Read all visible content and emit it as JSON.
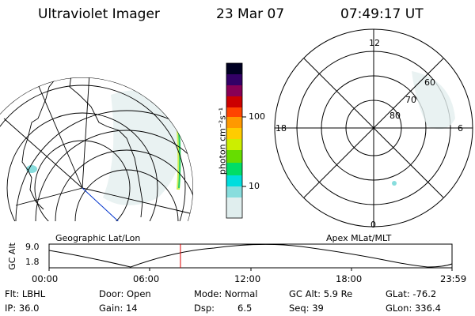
{
  "header": {
    "instrument": "Ultraviolet Imager",
    "date": "23 Mar 07",
    "time": "07:49:17 UT"
  },
  "colorbar": {
    "unit_label": "photon cm⁻²s⁻¹",
    "ticks": [
      "100",
      "10"
    ],
    "scale": "log",
    "colors": [
      "#000033",
      "#330066",
      "#660066",
      "#990033",
      "#cc0000",
      "#ff3300",
      "#ff9900",
      "#ffcc00",
      "#ccee00",
      "#66dd00",
      "#00dd66",
      "#00dddd",
      "#88dddd",
      "#e0eeee"
    ]
  },
  "left_panel": {
    "caption": "Geographic Lat/Lon"
  },
  "right_panel": {
    "caption": "Apex MLat/MLT",
    "mlt_labels": {
      "top": "12",
      "left": "18",
      "right": "6",
      "bottom": "0"
    },
    "lat_labels": [
      "60",
      "70",
      "80"
    ]
  },
  "altitude_strip": {
    "axis_label": "GC Alt",
    "y_top": "9.0",
    "y_bottom": "1.8",
    "time_ticks": [
      "00:00",
      "06:00",
      "12:00",
      "18:00",
      "23:59"
    ],
    "current_time_fraction": 0.326
  },
  "status": {
    "flt": "Flt: LBHL",
    "ip": "IP: 36.0",
    "door": "Door: Open",
    "gain": "Gain: 14",
    "mode": "Mode: Normal",
    "dsp_label": "Dsp:",
    "dsp_value": "6.5",
    "gc_alt": "GC Alt: 5.9 Re",
    "seq": "Seq: 39",
    "glat": "GLat: -76.2",
    "glon": "GLon: 336.4"
  }
}
